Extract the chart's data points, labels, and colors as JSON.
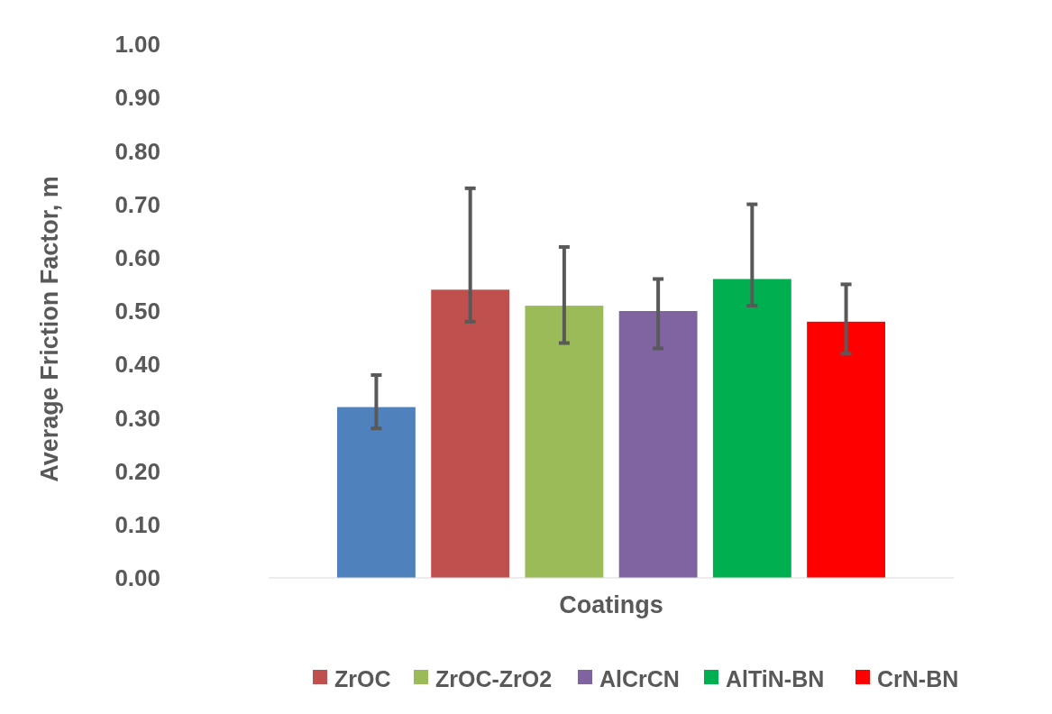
{
  "chart_data": {
    "type": "bar",
    "xlabel": "Coatings",
    "ylabel": "Average Friction Factor, m",
    "categories": [
      null
    ],
    "series": [
      {
        "color": "#4f81bd",
        "values": [
          0.32
        ],
        "errors": [
          [
            0.28,
            0.38
          ]
        ]
      },
      {
        "name": "ZrOC",
        "color": "#c0504d",
        "values": [
          0.54
        ],
        "errors": [
          [
            0.48,
            0.73
          ]
        ]
      },
      {
        "name": "ZrOC-ZrO2",
        "color": "#9bbb59",
        "values": [
          0.51
        ],
        "errors": [
          [
            0.44,
            0.62
          ]
        ]
      },
      {
        "name": "AlCrCN",
        "color": "#8064a2",
        "values": [
          0.5
        ],
        "errors": [
          [
            0.43,
            0.56
          ]
        ]
      },
      {
        "name": "AlTiN-BN",
        "color": "#00b050",
        "values": [
          0.56
        ],
        "errors": [
          [
            0.51,
            0.7
          ]
        ]
      },
      {
        "name": "CrN-BN",
        "color": "#ff0000",
        "values": [
          0.48
        ],
        "errors": [
          [
            0.42,
            0.55
          ]
        ]
      }
    ],
    "ylim": [
      0,
      1
    ],
    "yticks": [
      {
        "value": 0,
        "label": "0.00"
      },
      {
        "value": 0.1,
        "label": "0.10"
      },
      {
        "value": 0.2,
        "label": "0.20"
      },
      {
        "value": 0.3,
        "label": "0.30"
      },
      {
        "value": 0.4,
        "label": "0.40"
      },
      {
        "value": 0.5,
        "label": "0.50"
      },
      {
        "value": 0.6,
        "label": "0.60"
      },
      {
        "value": 0.7,
        "label": "0.70"
      },
      {
        "value": 0.8,
        "label": "0.80"
      },
      {
        "value": 0.9,
        "label": "0.90"
      },
      {
        "value": 1,
        "label": "1.00"
      }
    ],
    "grid": false,
    "legend": "bottom"
  }
}
